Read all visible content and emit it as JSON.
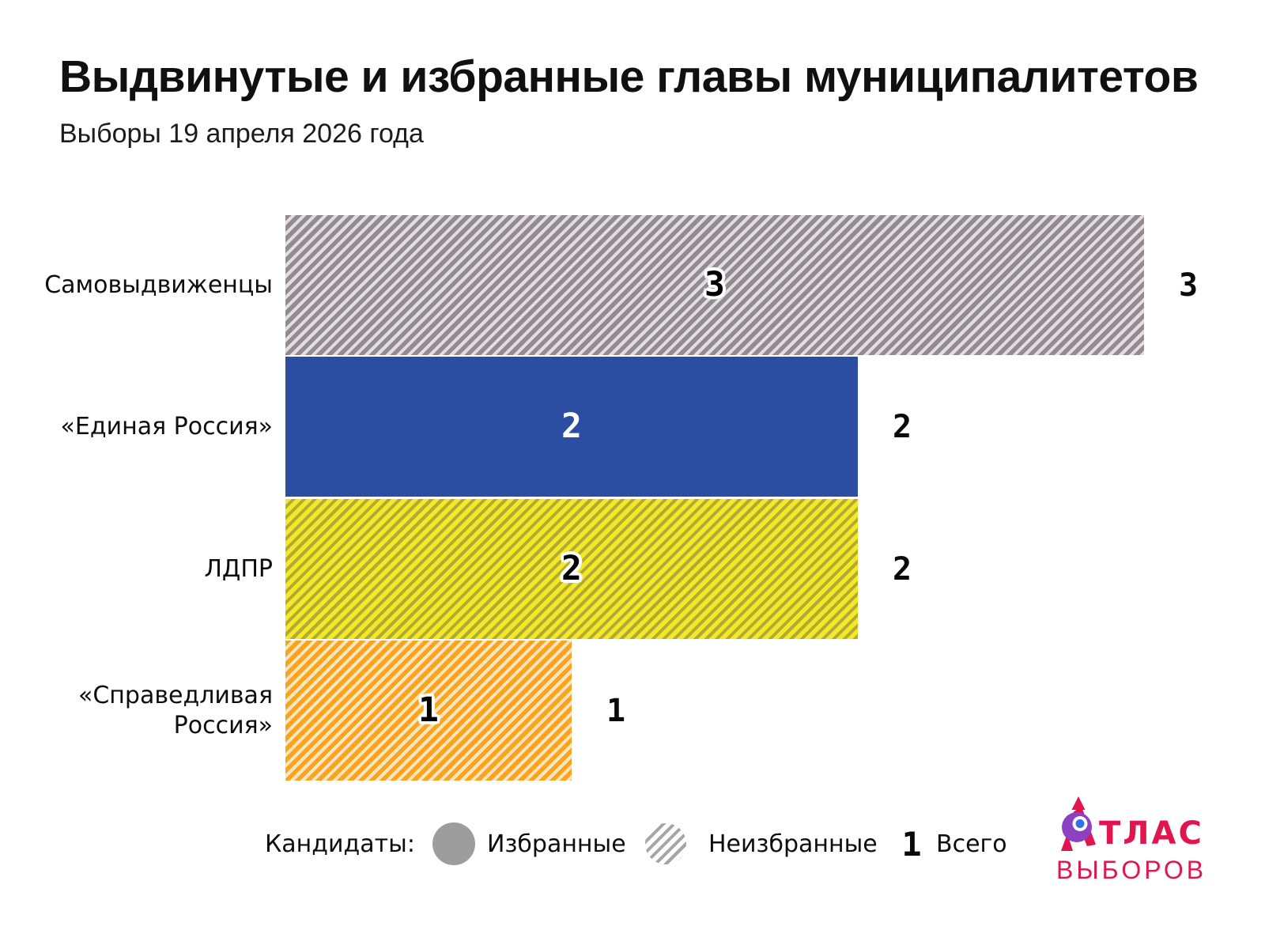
{
  "title": "Выдвинутые и избранные главы муниципалитетов",
  "subtitle": "Выборы 19 апреля 2026 года",
  "chart_data": {
    "type": "bar",
    "orientation": "horizontal",
    "title": "Выдвинутые и избранные главы муниципалитетов",
    "subtitle": "Выборы 19 апреля 2026 года",
    "categories": [
      "Самовыдвиженцы",
      "«Единая Россия»",
      "ЛДПР",
      "«Справедливая Россия»"
    ],
    "series": [
      {
        "name": "Избранные",
        "style": "solid",
        "values": [
          0,
          2,
          0,
          0
        ]
      },
      {
        "name": "Неизбранные",
        "style": "hatched",
        "values": [
          3,
          0,
          2,
          1
        ]
      }
    ],
    "totals": [
      3,
      2,
      2,
      1
    ],
    "xlim": [
      0,
      3
    ],
    "grid": false,
    "legend_position": "bottom",
    "colors": {
      "united_russia_blue": "#2b4ea3",
      "self_nominated_gray": "#938b91",
      "self_nominated_gray_stripe": "#e2dfe3",
      "ldpr_yellow": "#f3e829",
      "ldpr_yellow_stripe": "#b2aa31",
      "sr_orange": "#f9a320",
      "sr_orange_stripe": "#fbe6bd",
      "legend_gray": "#9d9d9d",
      "text_black": "#0a0a0a"
    }
  },
  "bars": [
    {
      "label": "Самовыдвиженцы",
      "value": 3,
      "value_text": "3",
      "total": "3",
      "pattern": "hatch",
      "value_style": "halo-black",
      "color_main": "#938b91",
      "color_stripe": "#e2dfe3"
    },
    {
      "label": "«Единая Россия»",
      "value": 2,
      "value_text": "2",
      "total": "2",
      "pattern": "solid",
      "value_style": "white",
      "color_main": "#2b4ea3",
      "color_stripe": ""
    },
    {
      "label": "ЛДПР",
      "value": 2,
      "value_text": "2",
      "total": "2",
      "pattern": "hatch",
      "value_style": "halo-black",
      "color_main": "#f3e829",
      "color_stripe": "#b2aa31"
    },
    {
      "label": "«Справедливая Россия»",
      "value": 1,
      "value_text": "1",
      "total": "1",
      "pattern": "hatch",
      "value_style": "halo-black",
      "color_main": "#f9a320",
      "color_stripe": "#fbe6bd"
    }
  ],
  "legend": {
    "prefix": "Кандидаты:",
    "elected_label": "Избранные",
    "not_elected_label": "Неизбранные",
    "total_symbol": "1",
    "total_label": "Всего"
  },
  "logo": {
    "brand_line1": "АТЛАС",
    "brand_line1_display": "ТЛАС",
    "brand_line2": "ВЫБОРОВ",
    "pink": "#e0164f",
    "purple": "#8d40c4",
    "eye_blue": "#3173e6"
  }
}
